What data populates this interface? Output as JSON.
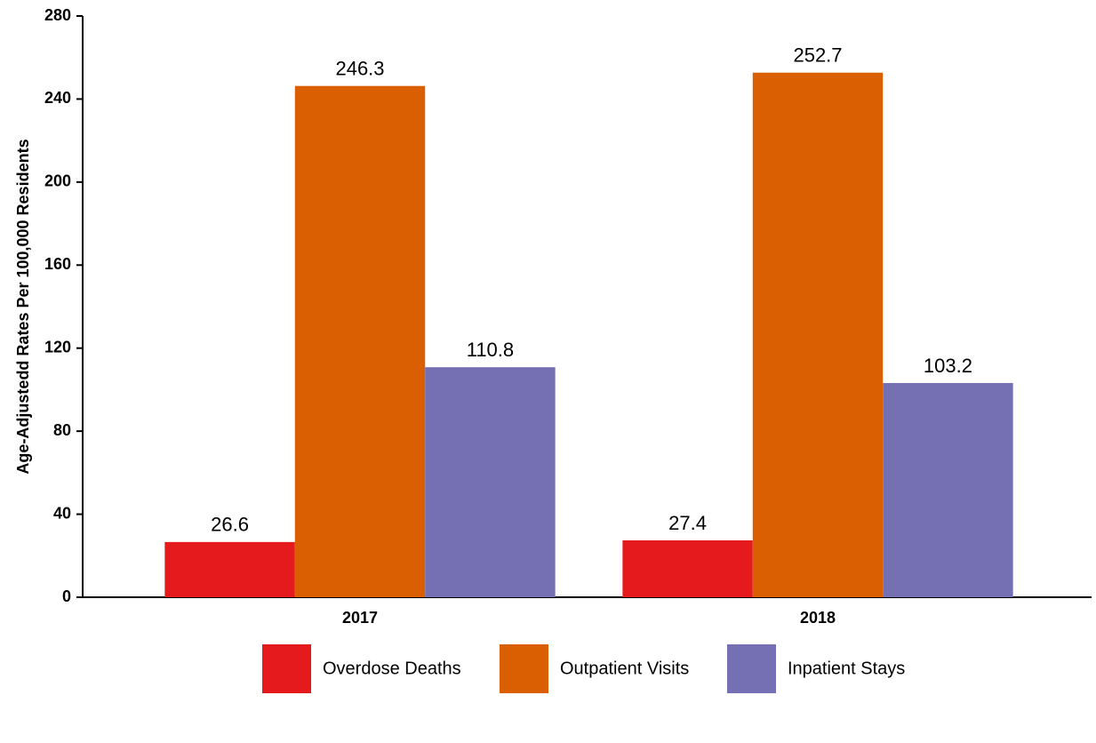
{
  "chart_data": {
    "type": "bar",
    "y_label": "Age-Adjustedd Rates Per 100,000 Residents",
    "categories": [
      "2017",
      "2018"
    ],
    "series": [
      {
        "name": "Overdose Deaths",
        "color": "#e41a1c",
        "values": [
          26.6,
          27.4
        ]
      },
      {
        "name": "Outpatient Visits",
        "color": "#d95f02",
        "values": [
          246.3,
          252.7
        ]
      },
      {
        "name": "Inpatient Stays",
        "color": "#7570b3",
        "values": [
          110.8,
          103.2
        ]
      }
    ],
    "ylim": [
      0,
      280
    ],
    "yticks": [
      0,
      40,
      80,
      120,
      160,
      200,
      240,
      280
    ],
    "legend": "bottom"
  }
}
